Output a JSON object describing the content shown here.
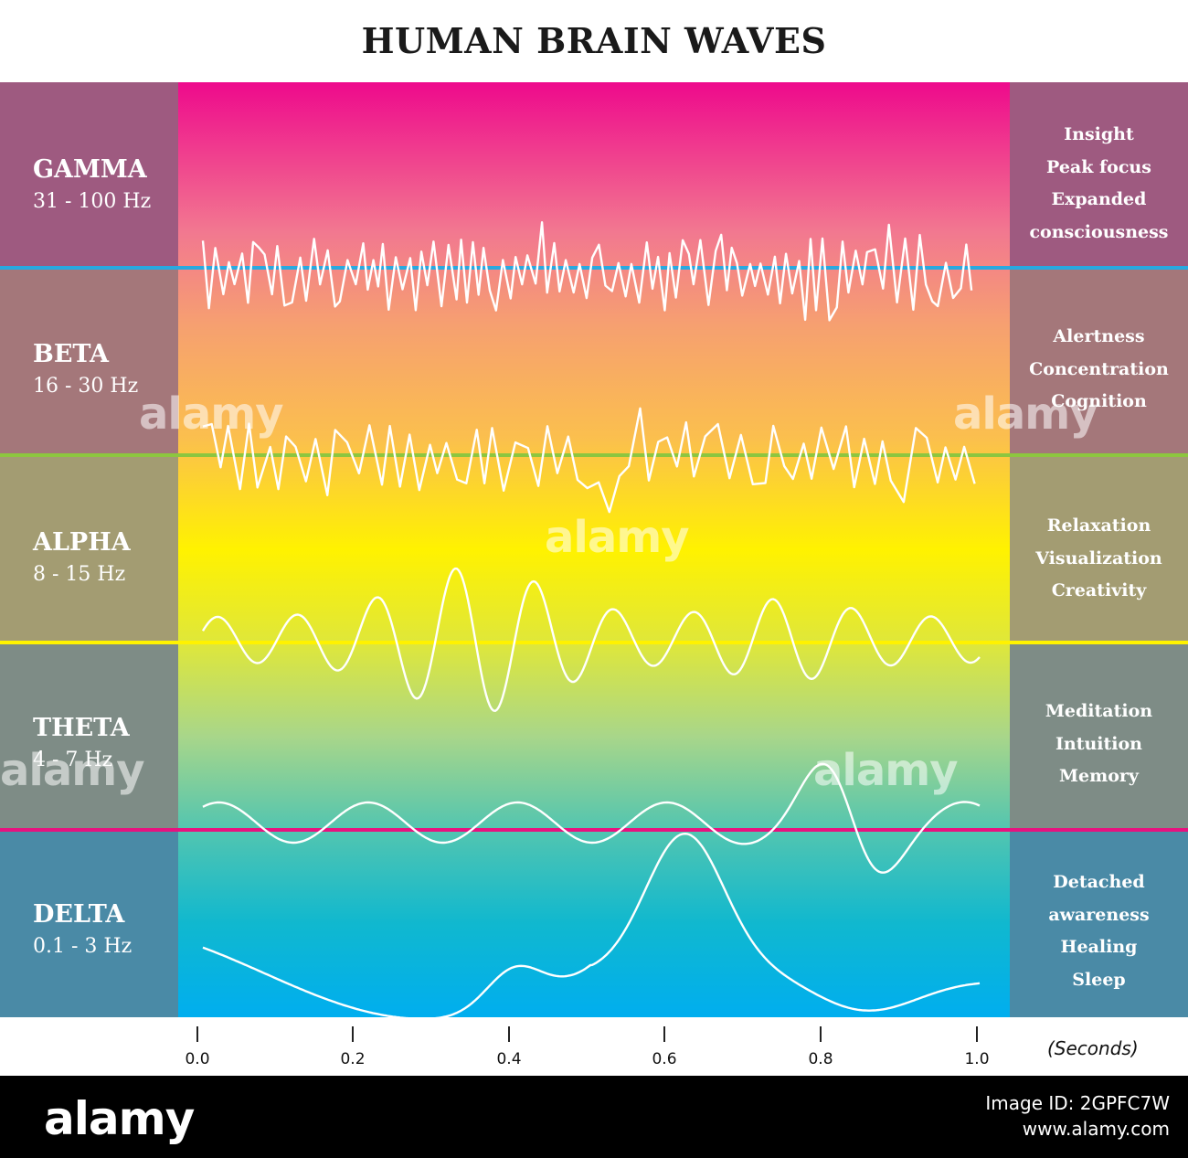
{
  "title": "HUMAN BRAIN WAVES",
  "bands": [
    {
      "name": "GAMMA",
      "freq": "31 - 100 Hz",
      "effects": [
        "Insight",
        "Peak focus",
        "Expanded",
        "consciousness"
      ],
      "side_color": "#9e5a80",
      "line_color": "#29a9e0"
    },
    {
      "name": "BETA",
      "freq": "16 - 30 Hz",
      "effects": [
        "Alertness",
        "Concentration",
        "Cognition"
      ],
      "side_color": "#a4777a",
      "line_color": "#8dc63f"
    },
    {
      "name": "ALPHA",
      "freq": "8 - 15 Hz",
      "effects": [
        "Relaxation",
        "Visualization",
        "Creativity"
      ],
      "side_color": "#a39c72",
      "line_color": "#fff200"
    },
    {
      "name": "THETA",
      "freq": "4 - 7 Hz",
      "effects": [
        "Meditation",
        "Intuition",
        "Memory"
      ],
      "side_color": "#7e8c86",
      "line_color": "#e8117f"
    },
    {
      "name": "DELTA",
      "freq": "0.1 - 3 Hz",
      "effects": [
        "Detached",
        "awareness",
        "Healing",
        "Sleep"
      ],
      "side_color": "#4a8aa6",
      "line_color": null
    }
  ],
  "axis": {
    "ticks": [
      "0.0",
      "0.2",
      "0.4",
      "0.6",
      "0.8",
      "1.0"
    ],
    "units": "(Seconds)"
  },
  "watermark": {
    "logo": "alamy",
    "image_id": "Image ID: 2GPFC7W",
    "site": "www.alamy.com"
  }
}
